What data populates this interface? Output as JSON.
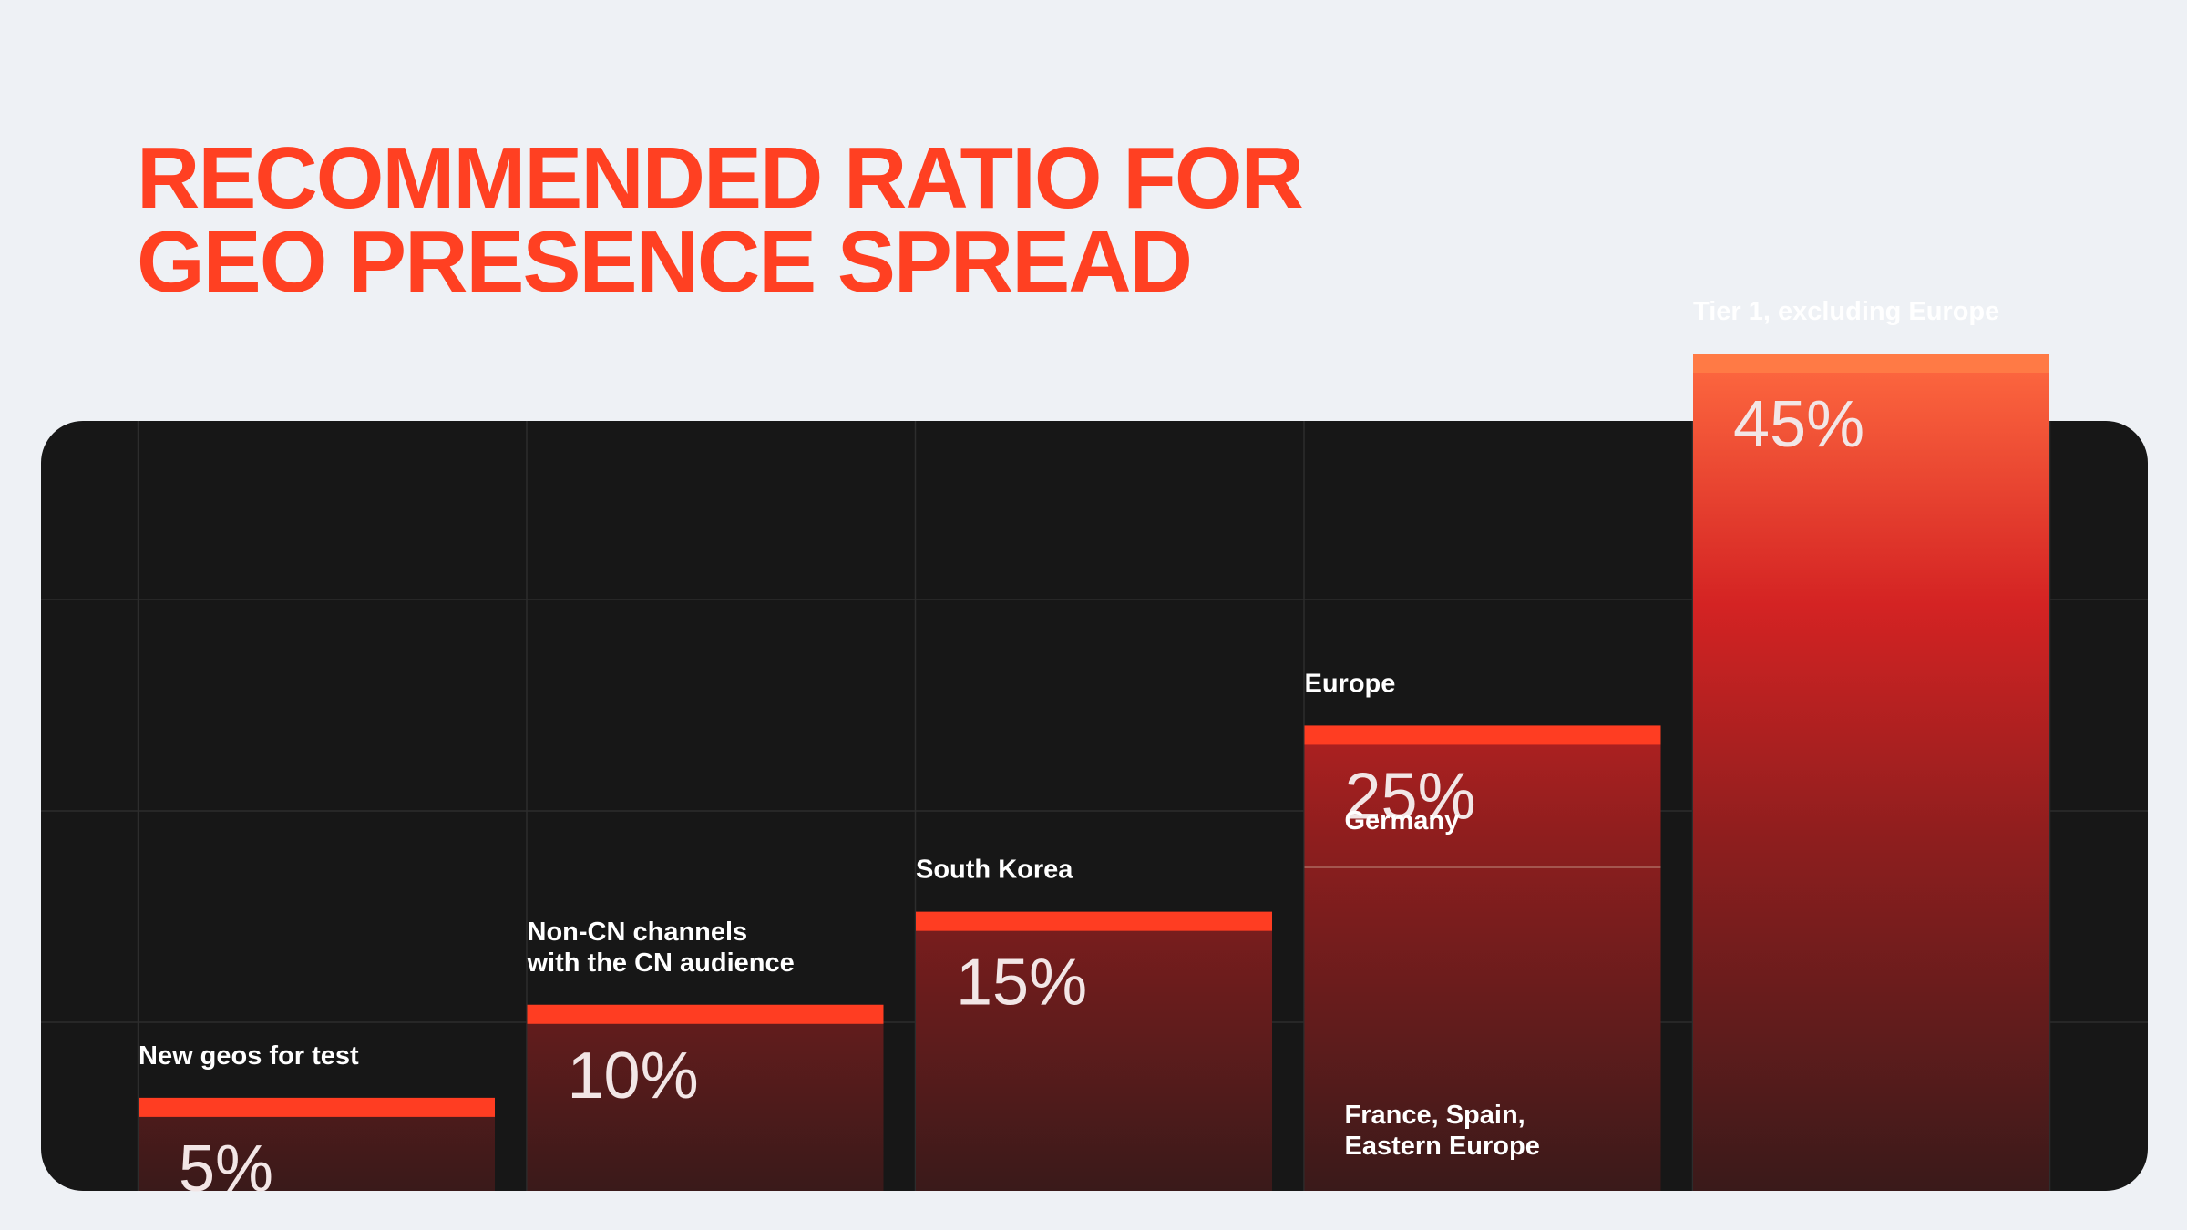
{
  "page": {
    "title": "RECOMMENDED RATIO FOR\nGEO PRESENCE SPREAD"
  },
  "colors": {
    "title": "#ff4022",
    "panel": "#171717",
    "background": "#eef1f5",
    "bar_cap": "#ff3d22",
    "bar_cap_top": "#ff7a45"
  },
  "chart_data": {
    "type": "bar",
    "title": "RECOMMENDED RATIO FOR GEO PRESENCE SPREAD",
    "unit": "%",
    "xlabel": "",
    "ylabel": "",
    "ylim": [
      0,
      45
    ],
    "grid": true,
    "categories": [
      "New geos for test",
      "Non-CN channels\nwith the CN audience",
      "South Korea",
      "Europe",
      "Tier 1, excluding Europe"
    ],
    "values": [
      5,
      10,
      15,
      25,
      45
    ],
    "value_labels": [
      "5%",
      "10%",
      "15%",
      "25%",
      "45%"
    ],
    "annotations": [
      {
        "category": "Europe",
        "text": "Germany",
        "position": "upper segment"
      },
      {
        "category": "Europe",
        "text": "France, Spain,\nEastern Europe",
        "position": "lower segment"
      }
    ]
  }
}
